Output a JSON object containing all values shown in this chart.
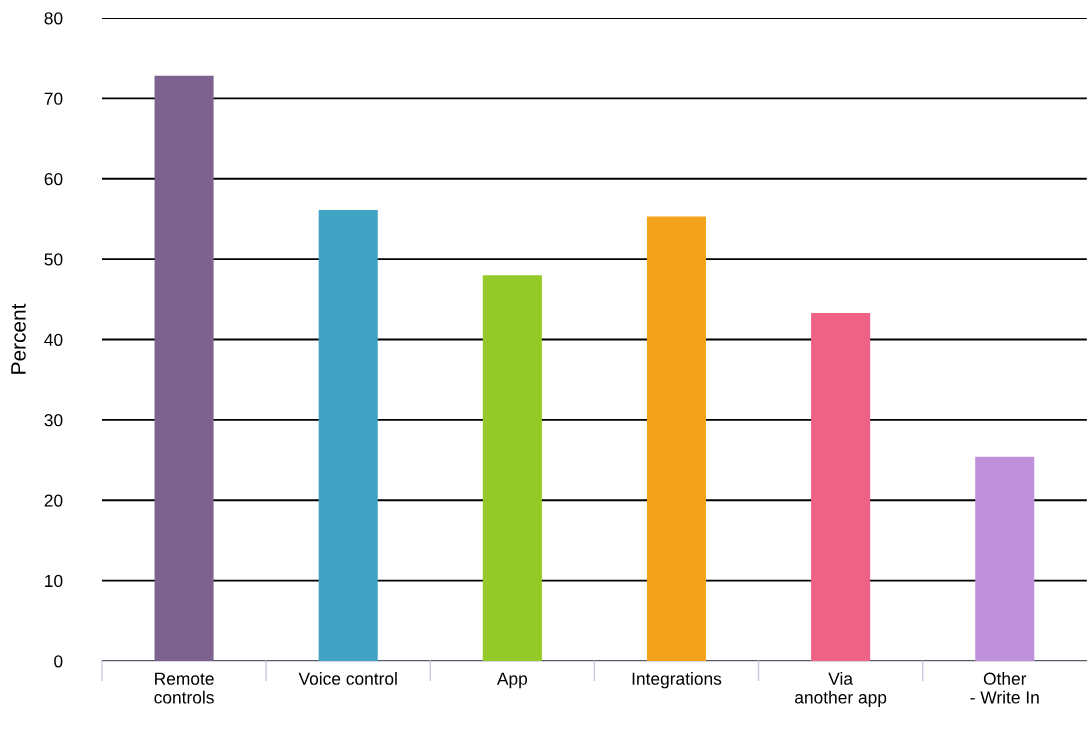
{
  "chart_data": {
    "type": "bar",
    "ylabel": "Percent",
    "categories": [
      "Remote controls",
      "Voice control",
      "App",
      "Integrations",
      "Via another app",
      "Other - Write In"
    ],
    "values": [
      72.8,
      56.1,
      48.0,
      55.3,
      43.3,
      25.4
    ],
    "colors": [
      "#7d6290",
      "#41a3c3",
      "#95c928",
      "#f4a41a",
      "#ef6285",
      "#bf91da"
    ],
    "ylim": [
      0,
      80
    ],
    "yticks": [
      0,
      10,
      20,
      30,
      40,
      50,
      60,
      70,
      80
    ],
    "grid": "y"
  }
}
